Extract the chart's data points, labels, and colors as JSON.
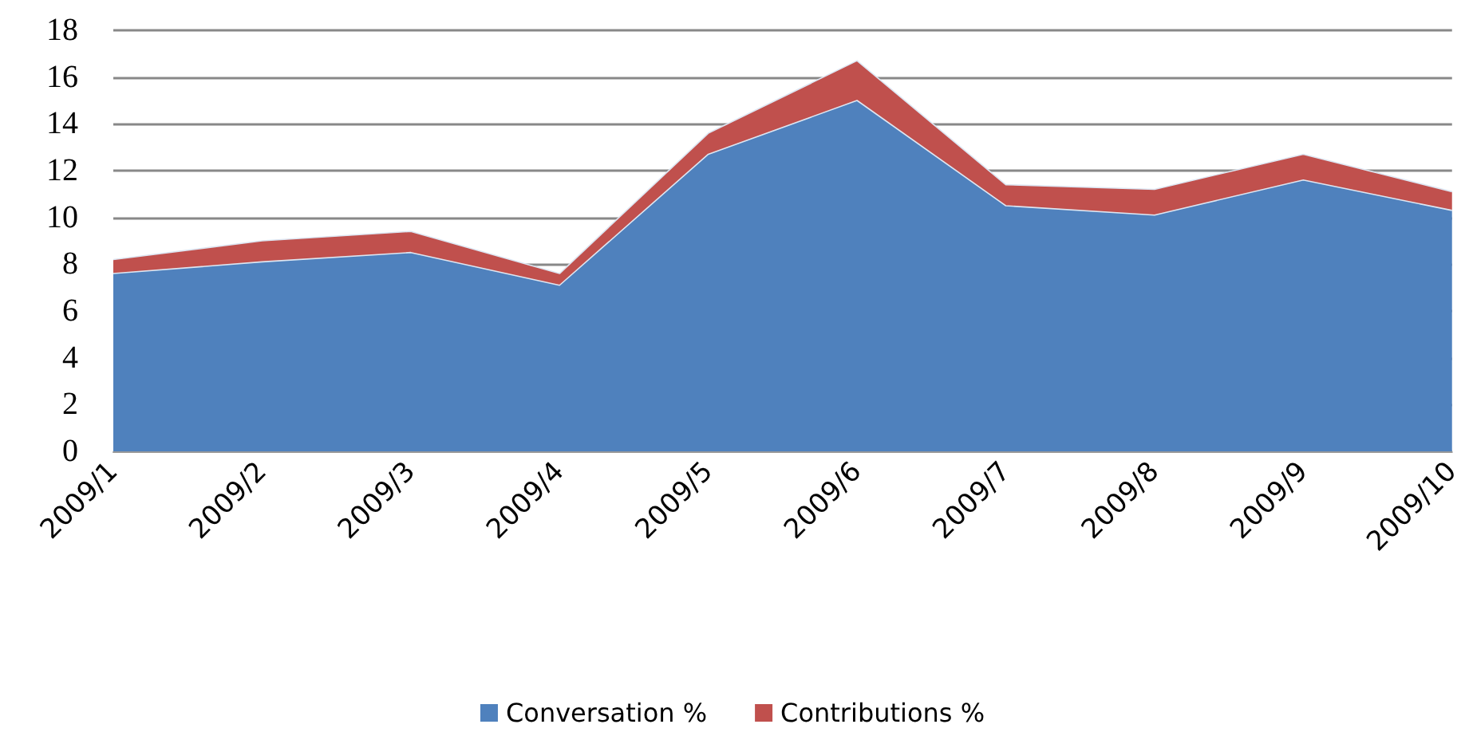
{
  "chart_data": {
    "type": "area",
    "stacked": true,
    "categories": [
      "2009/1",
      "2009/2",
      "2009/3",
      "2009/4",
      "2009/5",
      "2009/6",
      "2009/7",
      "2009/8",
      "2009/9",
      "2009/10"
    ],
    "series": [
      {
        "name": "Conversation %",
        "color": "#4f81bd",
        "values": [
          7.6,
          8.1,
          8.5,
          7.1,
          12.7,
          15.0,
          10.5,
          10.1,
          11.6,
          10.3
        ]
      },
      {
        "name": "Contributions %",
        "color": "#c0504d",
        "values": [
          0.6,
          0.9,
          0.9,
          0.5,
          0.9,
          1.7,
          0.9,
          1.1,
          1.1,
          0.8
        ]
      }
    ],
    "ylim": [
      0,
      18
    ],
    "yticks": [
      0,
      2,
      4,
      6,
      8,
      10,
      12,
      14,
      16,
      18
    ],
    "grid": "y",
    "legend": "bottom",
    "marker": "none"
  }
}
